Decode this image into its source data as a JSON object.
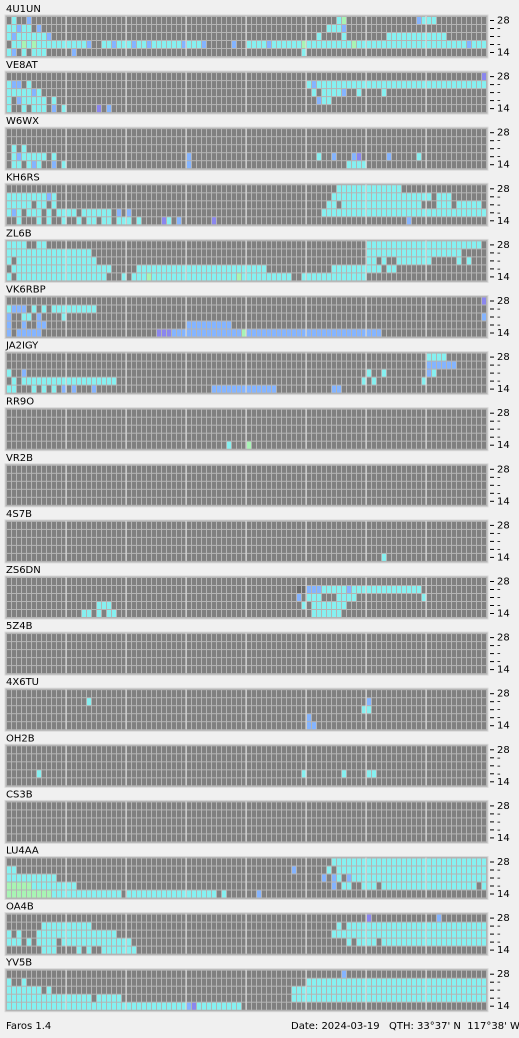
{
  "band_labels": [
    "28",
    "-",
    "-",
    "-",
    "14"
  ],
  "footer": {
    "app": "Faros 1.4",
    "date": "Date: 2024-03-19",
    "qth": "QTH: 33°37' N  117°38' W"
  },
  "stations": [
    {
      "name": "4U1UN",
      "rows": [
        "030020000000000000000000000000000000000000000000000000000000000000340000000000000023330000000000",
        "332330200000000000000000000000000000000000000000000000000000000033320000000000000000000000000000",
        "323333332000000000000000000000000000000000000000000000000000003000030000000033333333333300000000",
        "033434333333333320033233323323333332333200000200333323333334333333333433333333333333333333332333",
        "320303330000020000000000000000000000000000000000000000000003000000000000000000000000000000000000"
      ]
    },
    {
      "name": "VE8AT",
      "rows": [
        "000000000000000000000000000000000000000000000000000000000000000000000000000000000000000000000001",
        "322030000000000000000000000000000000000000000000000000000000323333333333333333333333333333333333",
        "333332300000000000000000000000000000000000000000000000000000030333320030000300000000000000000000",
        "302333330300000000000000000000000000000000000000000000000000002330000000000000000000000000000000",
        "300303330203000000102000000000000000000000000000000000000000000000000000000000000000000000000000"
      ]
    },
    {
      "name": "W6WX",
      "rows": [
        "000000000000000000000000000000000000000000000000000000000000000000000000000000000000000000000000",
        "000000000000000000000000000000000000000000000000000000000000000000000000000000000000000000000000",
        "030300000000000000000000000000000000000000000000000000000000000000000000000000000000000000000000",
        "032333330300000000000000000000000000200000000000000000000000003002000210000020000030000000000000",
        "033032300203000000000000000000000000200000000000000000000000000000003333000000000000000000000000"
      ]
    },
    {
      "name": "KH6RS",
      "rows": [
        "000000000000000000000000000000000000000000000000000000000000000000333333333333300000000000000000",
        "333333332300000000000000000000000000000000000000000000000000000003333333333333333333303330000000",
        "333330330300000000000000000000000000000000000000000000000000000033033333333333333330003330333330",
        "323033303033330333333020200000000000000000000000000000000000000333333333333333333333333333333333",
        "003000303003003033033033303000013020000001000000000000000000000000000000000000002000000000000000"
      ]
    },
    {
      "name": "ZL6B",
      "rows": [
        "333300330000000000000000000000000000000000000000000000000000000000000000333333333333333333333330",
        "333333333333333330000000000000000000000000000000000000000000000000000000333333333333333333300000",
        "303333333333333333000000000000000000000000000000000000000000000000000000330300333333300000303000",
        "033333333333333333333000003333333333333333333333333300000000000003333333333033000000000000000000",
        "303333333333333333330003033343333333333333333343333333333003333333333333000000000000000000000000"
      ]
    },
    {
      "name": "VK6RBP",
      "rows": [
        "000000000000000000000000000000000000000000000000000000000000000000000000000000000000000000000001",
        "322203030333333333000000000000000000000000000000000000000000000000000000000000000000000000000000",
        "200330200003000000000000000000000000000000000000000000000000000000000000000000000000000000000002",
        "200200220000000000000000000000000000222222222000000000000000000000000000000000000000000000000000",
        "202222200000000000000000000000111222222222222224222222222222222222222222222000000000000000000000"
      ]
    },
    {
      "name": "JA2IGY",
      "rows": [
        "000000000000000000000000000000000000000000000000000000000000000000000000000000000000333300000000",
        "000000000000000000000000000000000000000000000000000000000000000000000000000000000000222222000000",
        "300200000000000000000000000000000000000000000000000000000000000000000000300300000000230000000000",
        "030333333333333333333300000000000000000000000000000000000000000000000003030000000003000000000000",
        "330003030302020002000000000000000000000002222222222222000000000002200000000000000000000000000000"
      ]
    },
    {
      "name": "RR9O",
      "rows": [
        "000000000000000000000000000000000000000000000000000000000000000000000000000000000000000000000000",
        "000000000000000000000000000000000000000000000000000000000000000000000000000000000000000000000000",
        "000000000000000000000000000000000000000000000000000000000000000000000000000000000000000000000000",
        "000000000000000000000000000000000000000000000000000000000000000000000000000000000000000000000000",
        "000000000000000000000000000000000000000000003000400000000000000000000000000000000000000000000000"
      ]
    },
    {
      "name": "VR2B",
      "rows": [
        "000000000000000000000000000000000000000000000000000000000000000000000000000000000000000000000000",
        "000000000000000000000000000000000000000000000000000000000000000000000000000000000000000000000000",
        "000000000000000000000000000000000000000000000000000000000000000000000000000000000000000000000000",
        "000000000000000000000000000000000000000000000000000000000000000000000000000000000000000000000000",
        "000000000000000000000000000000000000000000000000000000000000000000000000000000000000000000000000"
      ]
    },
    {
      "name": "4S7B",
      "rows": [
        "000000000000000000000000000000000000000000000000000000000000000000000000000000000000000000000000",
        "000000000000000000000000000000000000000000000000000000000000000000000000000000000000000000000000",
        "000000000000000000000000000000000000000000000000000000000000000000000000000000000000000000000000",
        "000000000000000000000000000000000000000000000000000000000000000000000000000000000000000000000000",
        "000000000000000000000000000000000000000000000000000000000000000000000000000300000000000000000000"
      ]
    },
    {
      "name": "ZS6DN",
      "rows": [
        "000000000000000000000000000000000000000000000000000000000000000000000000000000000000000000000000",
        "000000000000000000000000000000000000000000000000000000000055222333332333333333333330000000000000",
        "000000000000000000000000000000000000000000000000000000000020333000333300000000000003000000000000",
        "000000000000000000333000000000000000000000000000000000000003033333330000000000000000000000000000",
        "000000000000000330303300000000000000000000000000000000000000033333300000000000000000000000000000"
      ]
    },
    {
      "name": "5Z4B",
      "rows": [
        "000000000000000000000000000000000000000000000000000000000000000000000000000000000000000000000000",
        "000000000000000000000000000000000000000000000000000000000000000000000000000000000000000000000000",
        "000000000000000000000000000000000000000000000000000000000000000000000000000000000000000000000000",
        "000000000000000000000000000000000000000000000000000000000000000000000000000000000000000000000000",
        "000000000000000000000000000000000000000000000000000000000000000000000000000000000000000000000000"
      ]
    },
    {
      "name": "4X6TU",
      "rows": [
        "000000000000000000000000000000000000000000000000000000000000000000000000000000000000000000000000",
        "000000000000000030000000000000000000000000000000000000000000000000000000200000000000000000000000",
        "000000000000000000000000000000000000000000000000000000000000000000000003300000000000000000000000",
        "000000000000000000000000000000000000000000000000000000000000200000000000000000000000000000000000",
        "000000000000000000000000000000000000000000000000000000000000220000000000000000000000000000000000"
      ]
    },
    {
      "name": "OH2B",
      "rows": [
        "000000000000000000000000000000000000000000000000000000000000000000000000000000000000000000000000",
        "000000000000000000000000000000000000000000000000000000000000000000000000000000000000000000000000",
        "000000000000000000000000000000000000000000000000000000000000000000000000000000000000000000000000",
        "000000300000000000000000000000000000000000000000000000000003000000030000330000000000000000000000",
        "000000000000000000000000000000000000000000000000000000000000000000000000000000000000000000000000"
      ]
    },
    {
      "name": "CS3B",
      "rows": [
        "000000000000000000000000000000000000000000000000000000000000000000000000000000000000000000000000",
        "000000000000000000000000000000000000000000000000000000000000000000000000000000000000000000000000",
        "000000000000000000000000000000000000000000000000000000000000000000000000000000000000000000000000",
        "000000000000000000000000000000000000000000000000000000000000000000000000000000000000000000000000",
        "000000000000000000000000000000000000000000000000000000000000000000000000000000000000000000000000"
      ]
    },
    {
      "name": "LU4AA",
      "rows": [
        "000000000000000000000000000000000000000000000000000000000000000003333333333333333333333333333333",
        "330000000000000000000000000000000000000000000000000000000200000030333333333333333333333333333333",
        "333333333300000000000000000000000000000000000000000000000000000202302333333333333333333333333333",
        "444443333333330000000000000000000000000000000000000000000000000002033003330333333333333333333303",
        "444444444333333333333330333333333333333333030000002000000000000000000000000000000000000000000000"
      ]
    },
    {
      "name": "OA4B",
      "rows": [
        "000000000000000000000000000000000000000000000000000000000000000000000000100000000000002000000000",
        "000000033333333330000000000000000000000000000000000000000000000000303333333333333333333333333333",
        "303000333333333333333300000000000000000000000000000000000000000003333333333333333333333333333333",
        "333030333303333333333333300000000000000000000000000000000000000000003033330333333333333333333333",
        "000000033300003030033333330000000000000000000000000000000000000000000000000000000000000000000000"
      ]
    },
    {
      "name": "YV5B",
      "rows": [
        "000000000000000000000000000000000000000000000000000000000000000000020000000000000000000000000000",
        "300300000000000000000000000000000000000000000000000000000000333333333333333333333333333333333333",
        "333333303000000000000000000000000000000000000000000000000333333333333333333333333333333333333333",
        "333333333333333330333330000000000000000000000000000000000333333333333333333333333333333333333333",
        "333333333333333333333333333333333333213333333330000000000000000000000000000000000000000000000000"
      ]
    }
  ]
}
